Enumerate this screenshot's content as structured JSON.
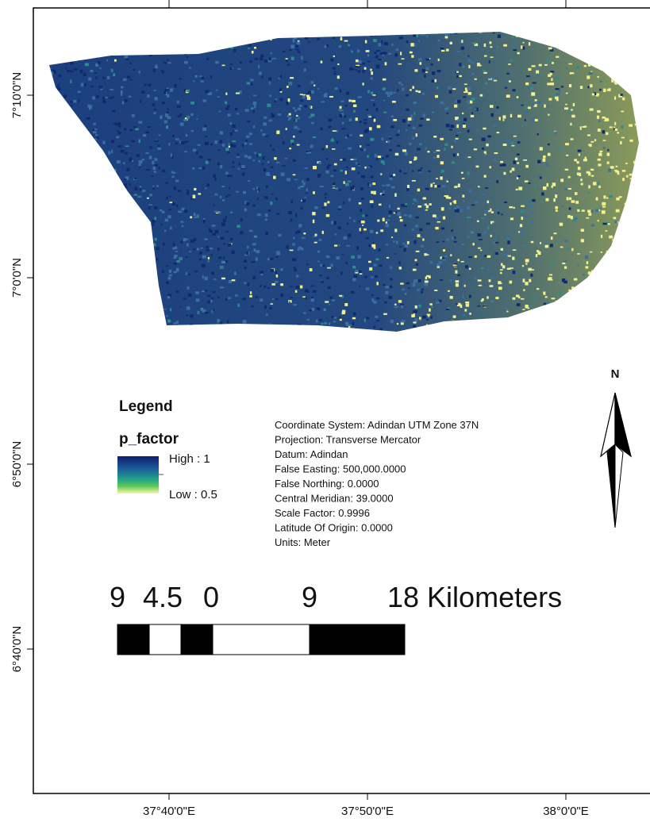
{
  "axes": {
    "lat_labels": [
      "7°10'0\"N",
      "7°0'0\"N",
      "6°50'0\"N",
      "6°40'0\"N"
    ],
    "lon_labels": [
      "37°40'0\"E",
      "37°50'0\"E",
      "38°0'0\"E"
    ]
  },
  "legend": {
    "title": "Legend",
    "field": "p_factor",
    "high": "High : 1",
    "low": "Low : 0.5"
  },
  "info": [
    "Coordinate System: Adindan UTM Zone 37N",
    "Projection: Transverse Mercator",
    "Datum: Adindan",
    "False Easting: 500,000.0000",
    "False Northing: 0.0000",
    "Central Meridian: 39.0000",
    "Scale Factor: 0.9996",
    "Latitude Of Origin: 0.0000",
    "Units: Meter"
  ],
  "north": "N",
  "scale_bar": {
    "labels": [
      "9",
      "4.5",
      "0",
      "9",
      "18 Kilometers"
    ]
  }
}
